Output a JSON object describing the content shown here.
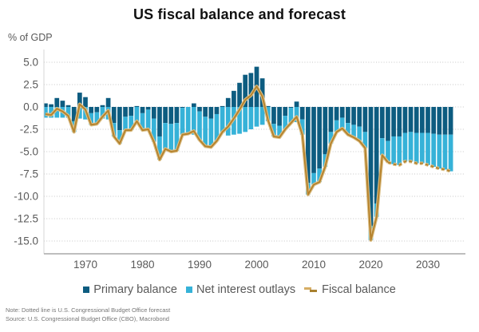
{
  "header": {
    "title": "US fiscal balance and forecast"
  },
  "legend": {
    "items": [
      {
        "label": "Primary balance",
        "marker": "square",
        "color": "#0d5c80"
      },
      {
        "label": "Net interest outlays",
        "marker": "square",
        "color": "#36b2d8"
      },
      {
        "label": "Fiscal balance",
        "marker": "dashed-line",
        "colors": [
          "#d6ad64",
          "#a8802f"
        ]
      }
    ]
  },
  "footnotes": {
    "note": "Note: Dotted line is U.S. Congressional Budget Office forecast",
    "source": "Source: U.S. Congressional Budget Office (CBO), Macrobond"
  },
  "chart_data": {
    "type": "bar",
    "subtype": "stacked-bars-with-line-overlay",
    "title": "US fiscal balance and forecast",
    "ylabel": "% of GDP",
    "unit": "% of GDP",
    "grid": "horizontal-dotted",
    "legend_position": "bottom",
    "ylim": [
      -16.4,
      6.1
    ],
    "y_ticks": [
      5,
      2.5,
      0,
      -2.5,
      -5,
      -7.5,
      -10,
      -12.5,
      -15
    ],
    "x_ticks": [
      1970,
      1980,
      1990,
      2000,
      2010,
      2020,
      2030
    ],
    "forecast_start_year": 2024,
    "x": [
      1963,
      1964,
      1965,
      1966,
      1967,
      1968,
      1969,
      1970,
      1971,
      1972,
      1973,
      1974,
      1975,
      1976,
      1977,
      1978,
      1979,
      1980,
      1981,
      1982,
      1983,
      1984,
      1985,
      1986,
      1987,
      1988,
      1989,
      1990,
      1991,
      1992,
      1993,
      1994,
      1995,
      1996,
      1997,
      1998,
      1999,
      2000,
      2001,
      2002,
      2003,
      2004,
      2005,
      2006,
      2007,
      2008,
      2009,
      2010,
      2011,
      2012,
      2013,
      2014,
      2015,
      2016,
      2017,
      2018,
      2019,
      2020,
      2021,
      2022,
      2023,
      2024,
      2025,
      2026,
      2027,
      2028,
      2029,
      2030,
      2031,
      2032,
      2033,
      2034
    ],
    "series": [
      {
        "name": "Primary balance",
        "type": "bar",
        "color": "#0d5c80",
        "values": [
          0.4,
          0.3,
          1.0,
          0.7,
          0.2,
          -1.6,
          1.6,
          1.1,
          -0.7,
          -0.6,
          0.2,
          1.0,
          -1.8,
          -2.6,
          -1.1,
          -1.0,
          0.1,
          -0.7,
          -0.3,
          -1.3,
          -3.3,
          -1.8,
          -1.9,
          -1.8,
          -0.1,
          0.0,
          0.4,
          -0.5,
          -1.1,
          -1.3,
          -0.8,
          0.1,
          1.0,
          1.8,
          2.7,
          3.6,
          3.8,
          4.5,
          3.2,
          0.1,
          -1.9,
          -2.1,
          -1.0,
          -0.1,
          0.6,
          -1.4,
          -8.5,
          -7.4,
          -6.9,
          -5.3,
          -2.8,
          -1.5,
          -1.2,
          -1.8,
          -2.0,
          -2.2,
          -2.8,
          -13.3,
          -10.8,
          -3.5,
          -3.8,
          -3.3,
          -3.3,
          -2.9,
          -2.8,
          -2.9,
          -2.9,
          -2.9,
          -3.0,
          -3.1,
          -3.1,
          -3.1
        ]
      },
      {
        "name": "Net interest outlays",
        "type": "bar",
        "color": "#36b2d8",
        "values": [
          -1.2,
          -1.2,
          -1.2,
          -1.2,
          -1.2,
          -1.2,
          -1.3,
          -1.4,
          -1.3,
          -1.3,
          -1.3,
          -1.4,
          -1.5,
          -1.5,
          -1.5,
          -1.6,
          -1.7,
          -1.9,
          -2.2,
          -2.6,
          -2.6,
          -2.9,
          -3.1,
          -3.1,
          -3.0,
          -3.0,
          -3.1,
          -3.2,
          -3.3,
          -3.2,
          -3.0,
          -2.9,
          -3.2,
          -3.1,
          -3.0,
          -2.8,
          -2.5,
          -2.2,
          -2.0,
          -1.6,
          -1.4,
          -1.3,
          -1.5,
          -1.7,
          -1.7,
          -1.7,
          -1.3,
          -1.3,
          -1.5,
          -1.4,
          -1.3,
          -1.3,
          -1.2,
          -1.3,
          -1.4,
          -1.6,
          -1.8,
          -1.6,
          -1.5,
          -1.9,
          -2.4,
          -3.1,
          -3.2,
          -3.2,
          -3.3,
          -3.4,
          -3.4,
          -3.6,
          -3.7,
          -3.8,
          -3.9,
          -4.1
        ]
      },
      {
        "name": "Fiscal balance",
        "type": "line",
        "color": "#b5832e",
        "casing_color": "#dcc088",
        "forecast_style": "dashed",
        "values": [
          -0.8,
          -0.9,
          -0.2,
          -0.5,
          -1.0,
          -2.8,
          0.3,
          -0.3,
          -2.0,
          -1.9,
          -1.1,
          -0.4,
          -3.3,
          -4.1,
          -2.6,
          -2.6,
          -1.6,
          -2.6,
          -2.5,
          -3.9,
          -5.9,
          -4.7,
          -5.0,
          -4.9,
          -3.1,
          -3.0,
          -2.7,
          -3.7,
          -4.4,
          -4.5,
          -3.8,
          -2.8,
          -2.2,
          -1.3,
          -0.3,
          0.8,
          1.3,
          2.3,
          1.2,
          -1.5,
          -3.3,
          -3.4,
          -2.5,
          -1.8,
          -1.1,
          -3.1,
          -9.8,
          -8.7,
          -8.4,
          -6.7,
          -4.1,
          -2.8,
          -2.4,
          -3.1,
          -3.4,
          -3.8,
          -4.6,
          -14.9,
          -12.3,
          -5.4,
          -6.2,
          -6.4,
          -6.5,
          -6.1,
          -6.1,
          -6.3,
          -6.3,
          -6.5,
          -6.7,
          -6.9,
          -7.0,
          -7.2
        ]
      }
    ]
  }
}
